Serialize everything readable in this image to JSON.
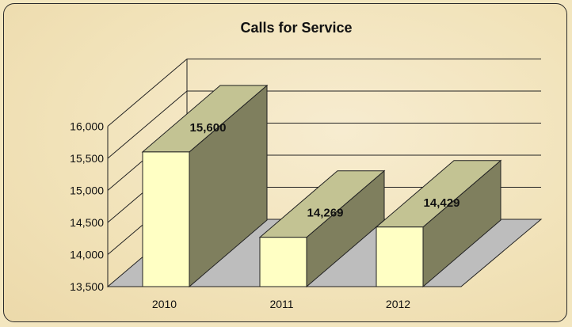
{
  "chart_data": {
    "type": "bar",
    "title": "Calls for Service",
    "categories": [
      "2010",
      "2011",
      "2012"
    ],
    "values": [
      15600,
      14269,
      14429
    ],
    "value_labels": [
      "15,600",
      "14,269",
      "14,429"
    ],
    "yticks": [
      13500,
      14000,
      14500,
      15000,
      15500,
      16000
    ],
    "ytick_labels": [
      "13,500",
      "14,000",
      "14,500",
      "15,000",
      "15,500",
      "16,000"
    ],
    "ylim": [
      13500,
      16000
    ],
    "grid": true,
    "legend": "none",
    "style": "3d-column",
    "colors": {
      "bar_front": "#ffffc4",
      "bar_side": "#7f7f5e",
      "bar_top": "#c3c393",
      "floor": "#bdbdbd",
      "grid": "#222222"
    }
  }
}
